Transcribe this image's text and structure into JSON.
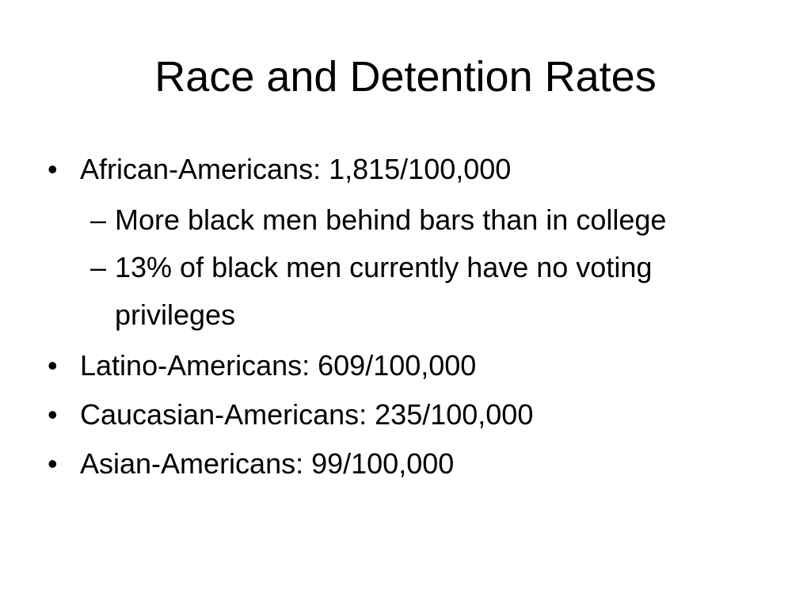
{
  "slide": {
    "title": "Race and Detention Rates",
    "bullet_symbol": "•",
    "dash_symbol": "–",
    "items": [
      {
        "text": "African-Americans: 1,815/100,000",
        "subitems": [
          "More black men behind bars than in college",
          "13% of black men currently have no voting privileges"
        ]
      },
      {
        "text": "Latino-Americans: 609/100,000"
      },
      {
        "text": "Caucasian-Americans: 235/100,000"
      },
      {
        "text": "Asian-Americans: 99/100,000"
      }
    ]
  }
}
